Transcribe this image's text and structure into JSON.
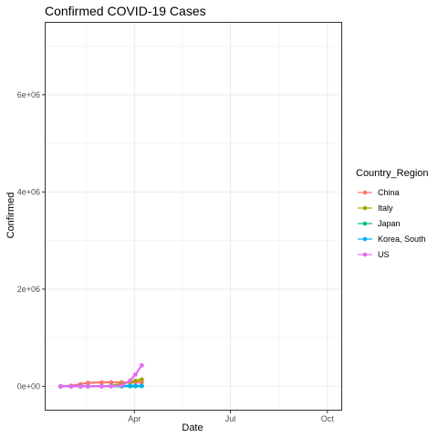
{
  "chart_data": {
    "type": "line",
    "title": "Confirmed COVID-19 Cases",
    "xlabel": "Date",
    "ylabel": "Confirmed",
    "x_ticks": [
      "Apr",
      "Jul",
      "Oct"
    ],
    "y_ticks": [
      "0e+00",
      "2e+06",
      "4e+06",
      "6e+06"
    ],
    "ylim": [
      -500000,
      7500000
    ],
    "xlim": [
      "2020-01-07",
      "2020-10-15"
    ],
    "grid": true,
    "legend": {
      "title": "Country_Region",
      "position": "right"
    },
    "x": [
      "2020-01-22",
      "2020-02-01",
      "2020-02-10",
      "2020-02-17",
      "2020-03-01",
      "2020-03-10",
      "2020-03-20",
      "2020-03-28",
      "2020-04-02",
      "2020-04-08"
    ],
    "series": [
      {
        "name": "China",
        "color": "#F8766D",
        "values": [
          548,
          11800,
          42700,
          72400,
          79900,
          80900,
          81300,
          81900,
          82400,
          82800
        ]
      },
      {
        "name": "Italy",
        "color": "#A3A500",
        "values": [
          0,
          2,
          3,
          3,
          1694,
          10149,
          47021,
          92472,
          115242,
          139422
        ]
      },
      {
        "name": "Japan",
        "color": "#00BF7D",
        "values": [
          2,
          20,
          26,
          66,
          256,
          581,
          963,
          1693,
          2617,
          4667
        ]
      },
      {
        "name": "Korea, South",
        "color": "#00B0F6",
        "values": [
          1,
          12,
          27,
          30,
          3736,
          7513,
          8652,
          9478,
          9976,
          10384
        ]
      },
      {
        "name": "US",
        "color": "#E76BF3",
        "values": [
          1,
          8,
          12,
          15,
          75,
          959,
          19100,
          121478,
          243622,
          432132
        ]
      }
    ]
  }
}
